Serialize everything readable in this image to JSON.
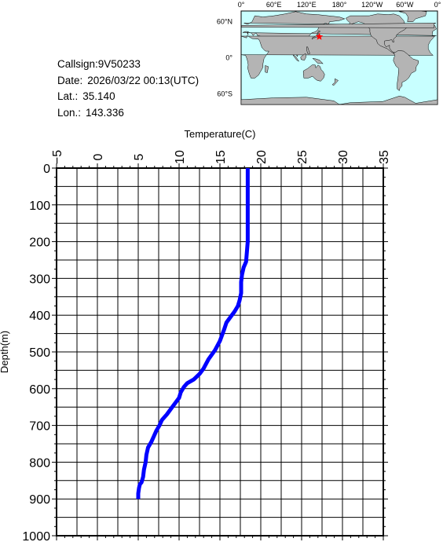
{
  "info": {
    "callsign_label": "Callsign:",
    "callsign": "9V50233",
    "date_label": "Date:",
    "date": "2026/03/22 00:13(UTC)",
    "lat_label": "Lat.:",
    "lat": "35.140",
    "lon_label": "Lon.:",
    "lon": "143.336"
  },
  "map": {
    "top_labels": [
      "0°",
      "60°E",
      "120°E",
      "180°",
      "120°W",
      "60°W",
      "0°"
    ],
    "left_labels": [
      "60°N",
      "0°",
      "60°S"
    ],
    "marker": {
      "lat": 35.14,
      "lon": 143.336
    },
    "colors": {
      "ocean": "#c8ffff",
      "land": "#b4b4b4",
      "marker": "#ff0000"
    }
  },
  "chart_data": {
    "type": "line",
    "xlabel": "Temperature(C)",
    "ylabel": "Depth(m)",
    "xlim": [
      -5,
      35
    ],
    "ylim": [
      1000,
      0
    ],
    "x_ticks": [
      "-5",
      "0",
      "5",
      "10",
      "15",
      "20",
      "25",
      "30",
      "35"
    ],
    "y_ticks": [
      "0",
      "100",
      "200",
      "300",
      "400",
      "500",
      "600",
      "700",
      "800",
      "900",
      "1000"
    ],
    "grid": true,
    "series_color": "#0000ff",
    "series": [
      {
        "temperature": [
          18.4,
          18.4,
          18.4,
          18.4,
          18.2,
          17.9,
          17.7,
          17.6,
          17.6,
          17.4,
          17.2,
          16.8,
          16.3,
          15.8,
          15.5,
          15.0,
          14.4,
          13.6,
          13.0,
          12.5,
          11.8,
          11.0,
          10.6,
          10.2,
          10.0,
          9.5,
          9.0,
          8.5,
          7.9,
          7.6,
          7.2,
          6.9,
          6.6,
          6.2,
          6.0,
          5.9,
          5.7,
          5.6,
          5.4,
          5.2,
          5.1,
          5.0,
          5.0
        ],
        "depth": [
          0,
          50,
          100,
          200,
          255,
          270,
          290,
          310,
          340,
          360,
          375,
          390,
          405,
          420,
          440,
          470,
          495,
          520,
          545,
          560,
          575,
          585,
          595,
          610,
          625,
          640,
          655,
          670,
          685,
          700,
          715,
          730,
          745,
          760,
          780,
          800,
          820,
          840,
          855,
          860,
          870,
          885,
          900
        ]
      }
    ]
  }
}
